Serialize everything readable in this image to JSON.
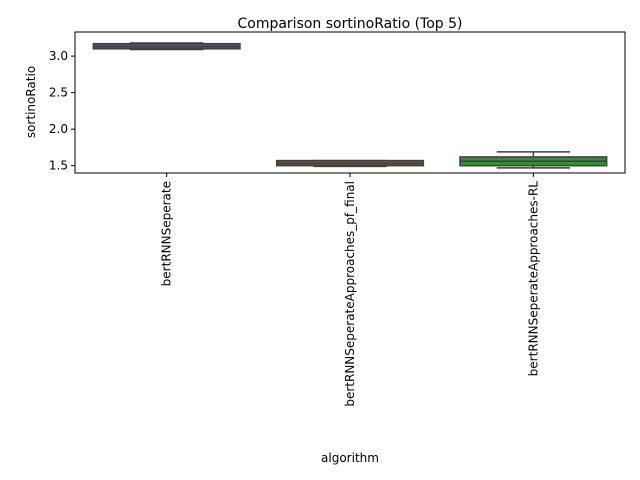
{
  "chart_data": {
    "type": "box",
    "title": "Comparison sortinoRatio (Top 5)",
    "x_label": "algorithm",
    "y_label": "sortinoRatio",
    "categories": [
      "bertRNNSeperate",
      "bertRNNSeperateApproaches_pf_final",
      "bertRNNSeperateApproaches-RL"
    ],
    "colors": [
      "#4a5a78",
      "#6b5540",
      "#3a8a3a"
    ],
    "whislo": [
      3.09,
      1.49,
      1.47
    ],
    "q1": [
      3.1,
      1.5,
      1.5
    ],
    "median": [
      3.13,
      1.53,
      1.56
    ],
    "q3": [
      3.17,
      1.57,
      1.62
    ],
    "whishi": [
      3.18,
      1.57,
      1.69
    ],
    "ylim": [
      1.4,
      3.33
    ],
    "yticks": [
      {
        "value": 1.5,
        "label": "1.5"
      },
      {
        "value": 2,
        "label": "2.0"
      },
      {
        "value": 2.5,
        "label": "2.5"
      },
      {
        "value": 3,
        "label": "3.0"
      }
    ]
  }
}
